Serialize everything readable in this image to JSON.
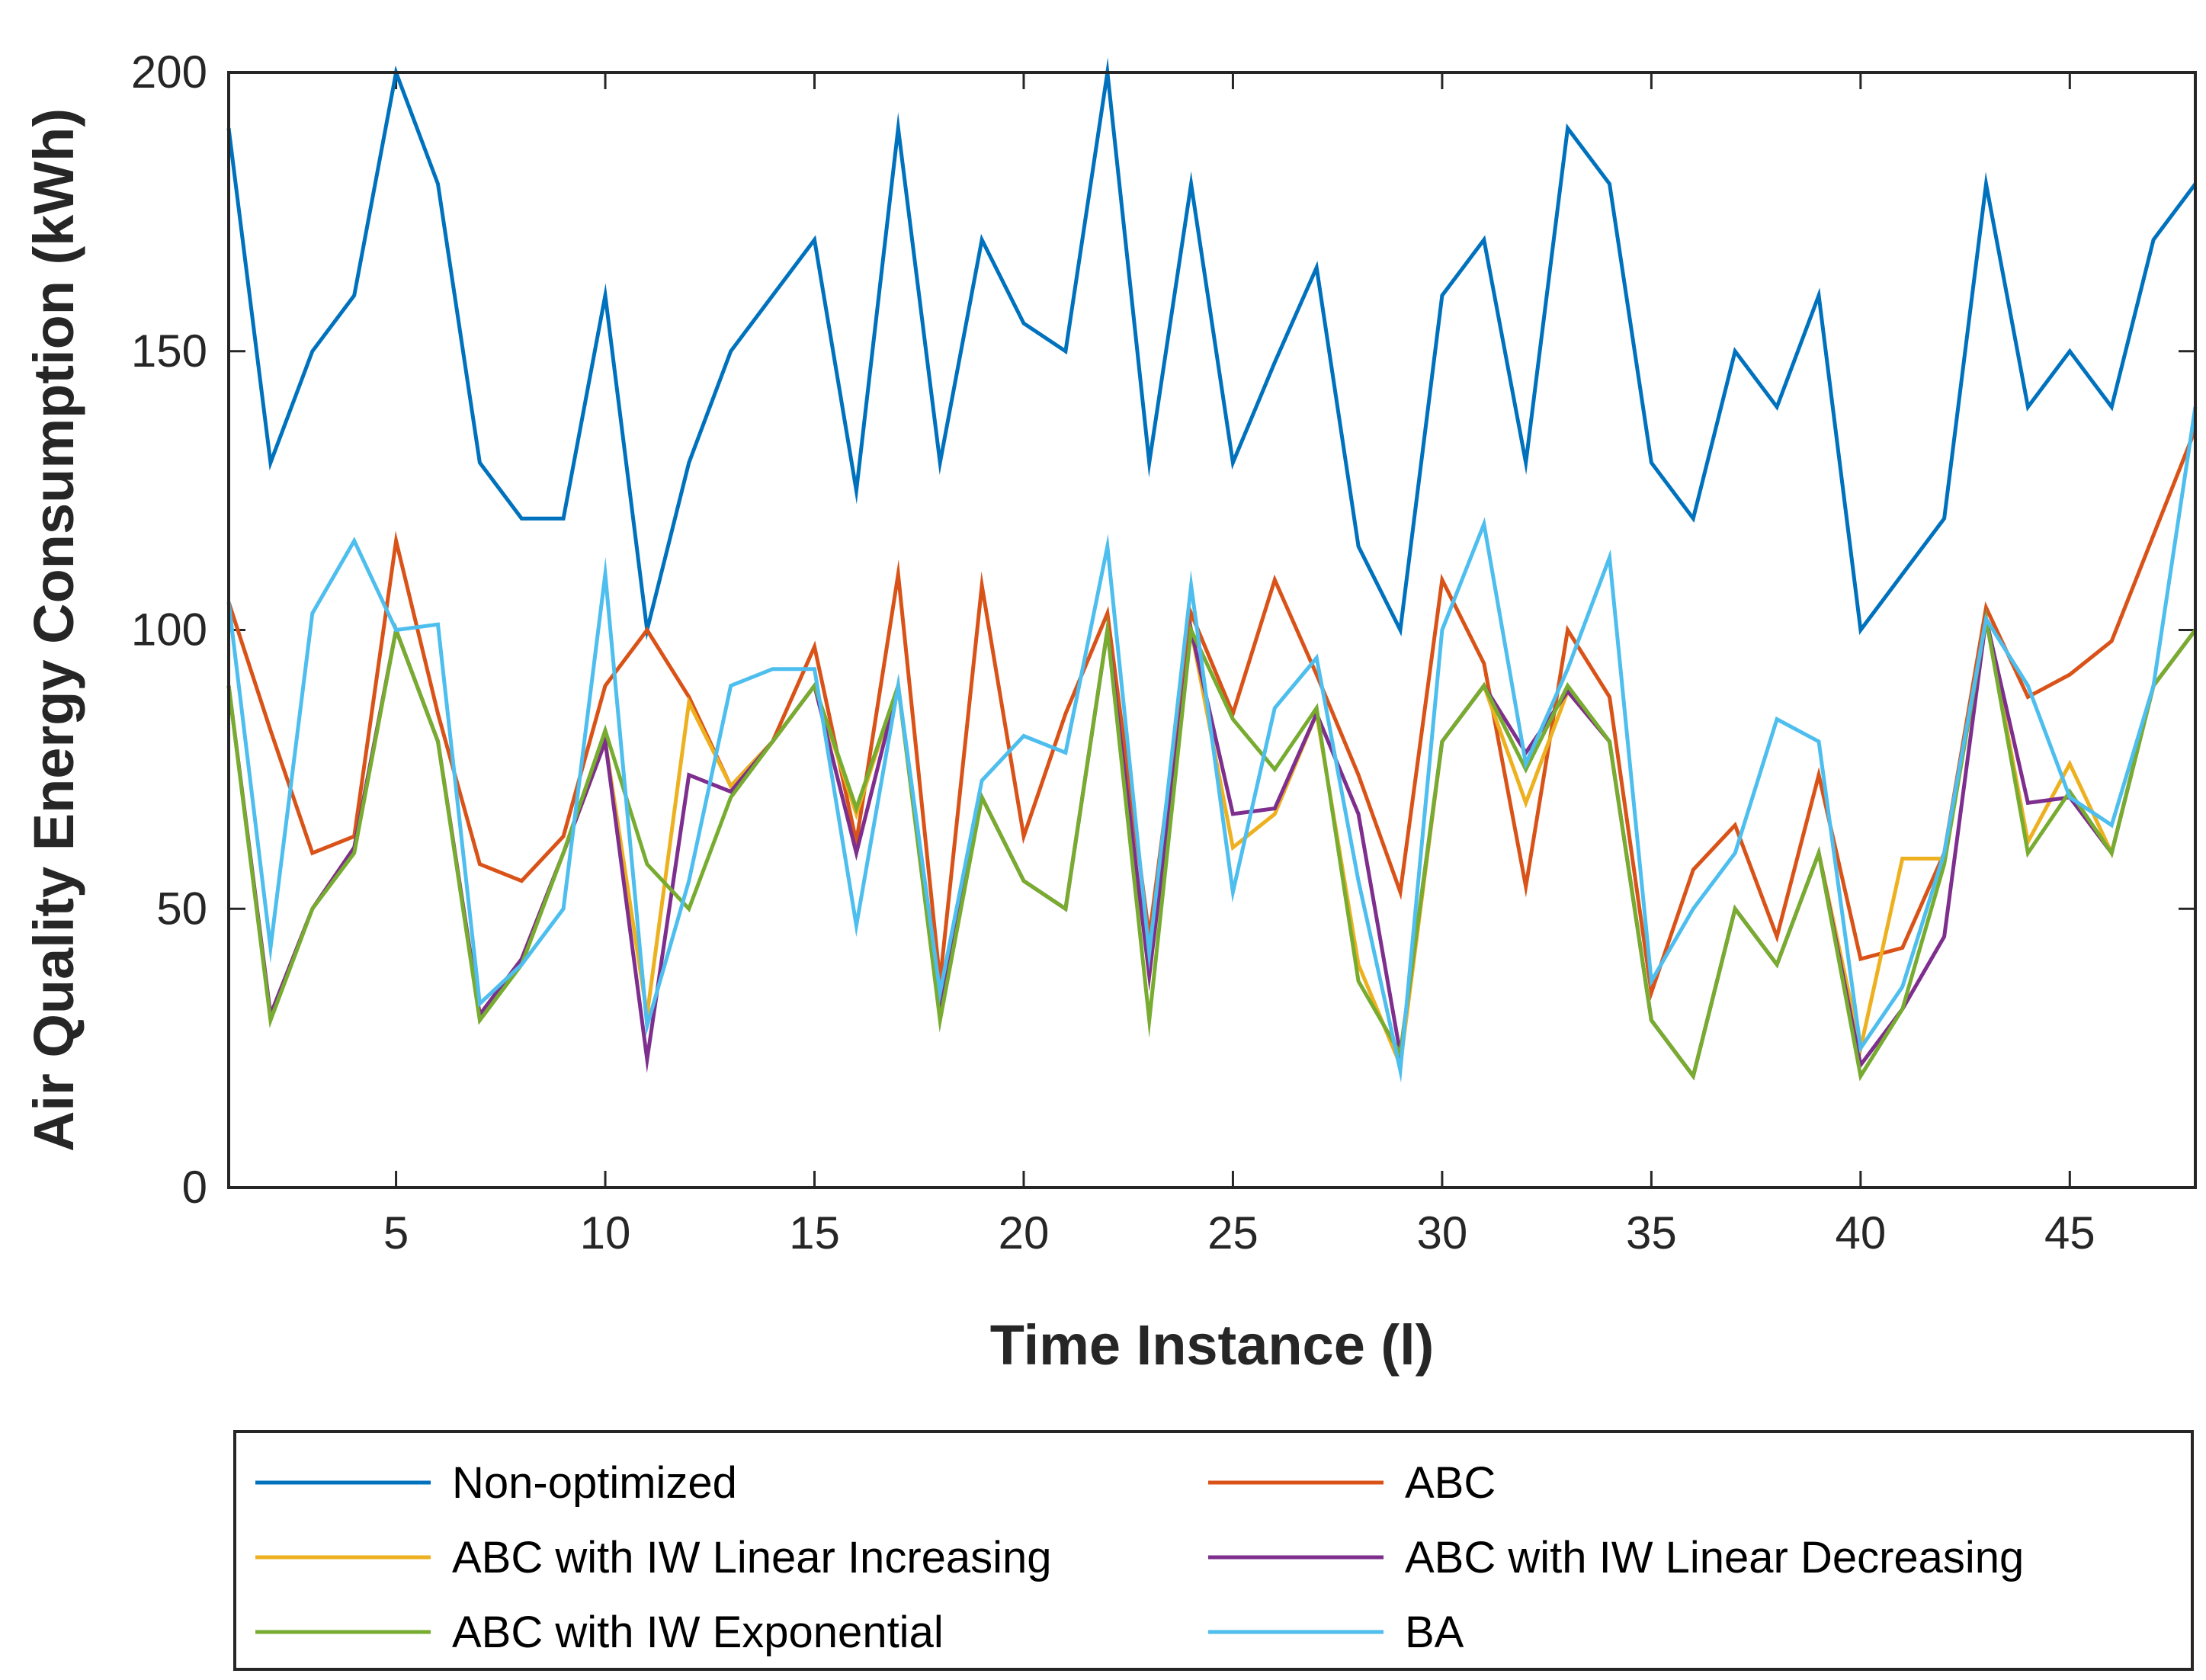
{
  "chart_data": {
    "type": "line",
    "title": "",
    "xlabel": "Time Instance (l)",
    "ylabel": "Air Quality Energy Consumption (kWh)",
    "xlim": [
      1,
      48
    ],
    "ylim": [
      0,
      200
    ],
    "xticks": [
      5,
      10,
      15,
      20,
      25,
      30,
      35,
      40,
      45
    ],
    "yticks": [
      0,
      50,
      100,
      150,
      200
    ],
    "legend_position": "bottom-outside",
    "x": [
      1,
      2,
      3,
      4,
      5,
      6,
      7,
      8,
      9,
      10,
      11,
      12,
      13,
      14,
      15,
      16,
      17,
      18,
      19,
      20,
      21,
      22,
      23,
      24,
      25,
      26,
      27,
      28,
      29,
      30,
      31,
      32,
      33,
      34,
      35,
      36,
      37,
      38,
      39,
      40,
      41,
      42,
      43,
      44,
      45,
      46,
      47,
      48
    ],
    "series": [
      {
        "name": "Non-optimized",
        "color": "#0072BD",
        "values": [
          190,
          130,
          150,
          160,
          200,
          180,
          130,
          120,
          120,
          160,
          100,
          130,
          150,
          160,
          170,
          125,
          190,
          130,
          170,
          155,
          150,
          200,
          130,
          180,
          130,
          148,
          165,
          115,
          100,
          160,
          170,
          130,
          190,
          180,
          130,
          120,
          150,
          140,
          160,
          100,
          110,
          120,
          180,
          140,
          150,
          140,
          170,
          180
        ]
      },
      {
        "name": "ABC",
        "color": "#D95319",
        "values": [
          105,
          82,
          60,
          63,
          116,
          85,
          58,
          55,
          63,
          90,
          100,
          88,
          72,
          80,
          97,
          62,
          110,
          37,
          108,
          63,
          85,
          103,
          45,
          103,
          85,
          109,
          92,
          74,
          53,
          109,
          94,
          54,
          100,
          88,
          35,
          57,
          65,
          45,
          74,
          41,
          43,
          60,
          104,
          88,
          92,
          98,
          117,
          136
        ]
      },
      {
        "name": "ABC with IW Linear Increasing",
        "color": "#EDB120",
        "values": [
          90,
          31,
          50,
          61,
          100,
          80,
          31,
          41,
          60,
          80,
          31,
          87,
          72,
          80,
          90,
          67,
          90,
          32,
          70,
          55,
          50,
          100,
          38,
          100,
          61,
          67,
          85,
          40,
          22,
          80,
          90,
          69,
          89,
          80,
          30,
          20,
          50,
          40,
          60,
          25,
          59,
          59,
          102,
          62,
          76,
          60,
          90,
          100
        ]
      },
      {
        "name": "ABC with IW Linear Decreasing",
        "color": "#7E2F8E",
        "values": [
          90,
          31,
          50,
          61,
          100,
          80,
          31,
          41,
          60,
          80,
          23,
          74,
          71,
          80,
          90,
          60,
          90,
          32,
          70,
          55,
          50,
          100,
          38,
          100,
          67,
          68,
          85,
          67,
          24,
          80,
          90,
          78,
          89,
          80,
          30,
          20,
          50,
          40,
          60,
          22,
          32,
          45,
          102,
          69,
          70,
          60,
          90,
          100
        ]
      },
      {
        "name": "ABC with IW Exponential",
        "color": "#77AC30",
        "values": [
          90,
          30,
          50,
          60,
          100,
          80,
          30,
          40,
          60,
          82,
          58,
          50,
          70,
          80,
          90,
          68,
          90,
          30,
          70,
          55,
          50,
          100,
          30,
          100,
          84,
          75,
          86,
          37,
          24,
          80,
          90,
          75,
          90,
          80,
          30,
          20,
          50,
          40,
          60,
          20,
          32,
          58,
          102,
          60,
          71,
          60,
          90,
          100
        ]
      },
      {
        "name": "BA",
        "color": "#4DBEEE",
        "values": [
          105,
          43,
          103,
          116,
          100,
          101,
          33,
          40,
          50,
          110,
          29,
          55,
          90,
          93,
          93,
          47,
          90,
          35,
          73,
          81,
          78,
          115,
          42,
          108,
          53,
          86,
          95,
          55,
          21,
          100,
          119,
          76,
          93,
          113,
          37,
          50,
          60,
          84,
          80,
          25,
          36,
          60,
          102,
          90,
          70,
          65,
          90,
          140
        ]
      }
    ]
  }
}
